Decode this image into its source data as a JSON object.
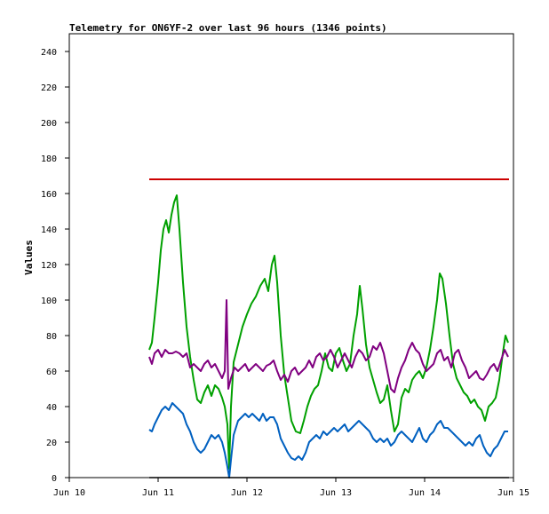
{
  "chart_data": {
    "type": "line",
    "title": "Telemetry for ON6YF-2 over last 96 hours (1346 points)",
    "xlabel": "",
    "ylabel": "Values",
    "ylim": [
      0,
      250
    ],
    "xlim": [
      10,
      15
    ],
    "yticks": [
      0,
      20,
      40,
      60,
      80,
      100,
      120,
      140,
      160,
      180,
      200,
      220,
      240
    ],
    "xticks": [
      {
        "value": 10,
        "label": "Jun 10"
      },
      {
        "value": 11,
        "label": "Jun 11"
      },
      {
        "value": 12,
        "label": "Jun 12"
      },
      {
        "value": 13,
        "label": "Jun 13"
      },
      {
        "value": 14,
        "label": "Jun 14"
      },
      {
        "value": 15,
        "label": "Jun 15"
      }
    ],
    "grid": false,
    "series": [
      {
        "color": "#cc0000",
        "points": [
          [
            10.9,
            168
          ],
          [
            14.95,
            168
          ]
        ]
      },
      {
        "color": "#00a000",
        "points": [
          [
            10.9,
            72
          ],
          [
            10.93,
            76
          ],
          [
            10.96,
            90
          ],
          [
            11.0,
            110
          ],
          [
            11.03,
            128
          ],
          [
            11.06,
            140
          ],
          [
            11.09,
            145
          ],
          [
            11.12,
            138
          ],
          [
            11.15,
            148
          ],
          [
            11.18,
            155
          ],
          [
            11.21,
            159
          ],
          [
            11.24,
            140
          ],
          [
            11.28,
            110
          ],
          [
            11.32,
            85
          ],
          [
            11.36,
            68
          ],
          [
            11.4,
            55
          ],
          [
            11.44,
            44
          ],
          [
            11.48,
            42
          ],
          [
            11.52,
            48
          ],
          [
            11.56,
            52
          ],
          [
            11.6,
            46
          ],
          [
            11.64,
            52
          ],
          [
            11.68,
            50
          ],
          [
            11.72,
            45
          ],
          [
            11.75,
            40
          ],
          [
            11.78,
            30
          ],
          [
            11.8,
            5
          ],
          [
            11.82,
            40
          ],
          [
            11.85,
            65
          ],
          [
            11.9,
            75
          ],
          [
            11.95,
            85
          ],
          [
            12.0,
            92
          ],
          [
            12.05,
            98
          ],
          [
            12.1,
            102
          ],
          [
            12.15,
            108
          ],
          [
            12.2,
            112
          ],
          [
            12.24,
            105
          ],
          [
            12.28,
            120
          ],
          [
            12.31,
            125
          ],
          [
            12.34,
            110
          ],
          [
            12.38,
            80
          ],
          [
            12.42,
            58
          ],
          [
            12.46,
            45
          ],
          [
            12.5,
            32
          ],
          [
            12.55,
            26
          ],
          [
            12.6,
            25
          ],
          [
            12.64,
            32
          ],
          [
            12.68,
            40
          ],
          [
            12.72,
            46
          ],
          [
            12.76,
            50
          ],
          [
            12.8,
            52
          ],
          [
            12.84,
            60
          ],
          [
            12.88,
            70
          ],
          [
            12.92,
            62
          ],
          [
            12.96,
            60
          ],
          [
            13.0,
            70
          ],
          [
            13.04,
            73
          ],
          [
            13.08,
            66
          ],
          [
            13.12,
            60
          ],
          [
            13.16,
            64
          ],
          [
            13.2,
            80
          ],
          [
            13.24,
            92
          ],
          [
            13.27,
            108
          ],
          [
            13.3,
            95
          ],
          [
            13.34,
            75
          ],
          [
            13.38,
            62
          ],
          [
            13.42,
            55
          ],
          [
            13.46,
            48
          ],
          [
            13.5,
            42
          ],
          [
            13.54,
            44
          ],
          [
            13.58,
            52
          ],
          [
            13.62,
            38
          ],
          [
            13.66,
            26
          ],
          [
            13.7,
            30
          ],
          [
            13.74,
            45
          ],
          [
            13.78,
            50
          ],
          [
            13.82,
            48
          ],
          [
            13.86,
            55
          ],
          [
            13.9,
            58
          ],
          [
            13.94,
            60
          ],
          [
            13.98,
            56
          ],
          [
            14.02,
            62
          ],
          [
            14.06,
            72
          ],
          [
            14.1,
            85
          ],
          [
            14.14,
            100
          ],
          [
            14.17,
            115
          ],
          [
            14.2,
            112
          ],
          [
            14.24,
            98
          ],
          [
            14.28,
            80
          ],
          [
            14.32,
            64
          ],
          [
            14.36,
            56
          ],
          [
            14.4,
            52
          ],
          [
            14.44,
            48
          ],
          [
            14.48,
            46
          ],
          [
            14.52,
            42
          ],
          [
            14.56,
            44
          ],
          [
            14.6,
            40
          ],
          [
            14.64,
            38
          ],
          [
            14.68,
            32
          ],
          [
            14.72,
            40
          ],
          [
            14.76,
            42
          ],
          [
            14.8,
            45
          ],
          [
            14.84,
            55
          ],
          [
            14.88,
            70
          ],
          [
            14.91,
            80
          ],
          [
            14.94,
            76
          ]
        ]
      },
      {
        "color": "#800080",
        "points": [
          [
            10.9,
            68
          ],
          [
            10.93,
            64
          ],
          [
            10.96,
            70
          ],
          [
            11.0,
            72
          ],
          [
            11.04,
            68
          ],
          [
            11.08,
            72
          ],
          [
            11.12,
            70
          ],
          [
            11.16,
            70
          ],
          [
            11.2,
            71
          ],
          [
            11.24,
            70
          ],
          [
            11.28,
            68
          ],
          [
            11.32,
            70
          ],
          [
            11.36,
            62
          ],
          [
            11.4,
            64
          ],
          [
            11.44,
            62
          ],
          [
            11.48,
            60
          ],
          [
            11.52,
            64
          ],
          [
            11.56,
            66
          ],
          [
            11.6,
            62
          ],
          [
            11.64,
            64
          ],
          [
            11.68,
            60
          ],
          [
            11.72,
            56
          ],
          [
            11.75,
            60
          ],
          [
            11.77,
            100
          ],
          [
            11.79,
            50
          ],
          [
            11.82,
            56
          ],
          [
            11.86,
            62
          ],
          [
            11.9,
            60
          ],
          [
            11.94,
            62
          ],
          [
            11.98,
            64
          ],
          [
            12.02,
            60
          ],
          [
            12.06,
            62
          ],
          [
            12.1,
            64
          ],
          [
            12.14,
            62
          ],
          [
            12.18,
            60
          ],
          [
            12.22,
            63
          ],
          [
            12.26,
            64
          ],
          [
            12.3,
            66
          ],
          [
            12.34,
            60
          ],
          [
            12.38,
            55
          ],
          [
            12.42,
            58
          ],
          [
            12.46,
            54
          ],
          [
            12.5,
            60
          ],
          [
            12.54,
            62
          ],
          [
            12.58,
            58
          ],
          [
            12.62,
            60
          ],
          [
            12.66,
            62
          ],
          [
            12.7,
            66
          ],
          [
            12.74,
            62
          ],
          [
            12.78,
            68
          ],
          [
            12.82,
            70
          ],
          [
            12.86,
            66
          ],
          [
            12.9,
            68
          ],
          [
            12.94,
            72
          ],
          [
            12.98,
            68
          ],
          [
            13.02,
            62
          ],
          [
            13.06,
            66
          ],
          [
            13.1,
            70
          ],
          [
            13.14,
            66
          ],
          [
            13.18,
            62
          ],
          [
            13.22,
            68
          ],
          [
            13.26,
            72
          ],
          [
            13.3,
            70
          ],
          [
            13.34,
            66
          ],
          [
            13.38,
            68
          ],
          [
            13.42,
            74
          ],
          [
            13.46,
            72
          ],
          [
            13.5,
            76
          ],
          [
            13.54,
            70
          ],
          [
            13.58,
            60
          ],
          [
            13.62,
            50
          ],
          [
            13.66,
            48
          ],
          [
            13.7,
            56
          ],
          [
            13.74,
            62
          ],
          [
            13.78,
            66
          ],
          [
            13.82,
            72
          ],
          [
            13.86,
            76
          ],
          [
            13.9,
            72
          ],
          [
            13.94,
            70
          ],
          [
            13.98,
            64
          ],
          [
            14.02,
            60
          ],
          [
            14.06,
            62
          ],
          [
            14.1,
            64
          ],
          [
            14.14,
            70
          ],
          [
            14.18,
            72
          ],
          [
            14.22,
            66
          ],
          [
            14.26,
            68
          ],
          [
            14.3,
            62
          ],
          [
            14.34,
            70
          ],
          [
            14.38,
            72
          ],
          [
            14.42,
            66
          ],
          [
            14.46,
            62
          ],
          [
            14.5,
            56
          ],
          [
            14.54,
            58
          ],
          [
            14.58,
            60
          ],
          [
            14.62,
            56
          ],
          [
            14.66,
            55
          ],
          [
            14.7,
            58
          ],
          [
            14.74,
            62
          ],
          [
            14.78,
            64
          ],
          [
            14.82,
            60
          ],
          [
            14.86,
            66
          ],
          [
            14.9,
            72
          ],
          [
            14.94,
            68
          ]
        ]
      },
      {
        "color": "#0060c0",
        "points": [
          [
            10.9,
            27
          ],
          [
            10.93,
            26
          ],
          [
            10.96,
            30
          ],
          [
            11.0,
            34
          ],
          [
            11.04,
            38
          ],
          [
            11.08,
            40
          ],
          [
            11.12,
            38
          ],
          [
            11.16,
            42
          ],
          [
            11.2,
            40
          ],
          [
            11.24,
            38
          ],
          [
            11.28,
            36
          ],
          [
            11.32,
            30
          ],
          [
            11.36,
            26
          ],
          [
            11.4,
            20
          ],
          [
            11.44,
            16
          ],
          [
            11.48,
            14
          ],
          [
            11.52,
            16
          ],
          [
            11.56,
            20
          ],
          [
            11.6,
            24
          ],
          [
            11.64,
            22
          ],
          [
            11.68,
            24
          ],
          [
            11.72,
            20
          ],
          [
            11.75,
            14
          ],
          [
            11.78,
            6
          ],
          [
            11.8,
            0
          ],
          [
            11.82,
            10
          ],
          [
            11.85,
            24
          ],
          [
            11.9,
            32
          ],
          [
            11.94,
            34
          ],
          [
            11.98,
            36
          ],
          [
            12.02,
            34
          ],
          [
            12.06,
            36
          ],
          [
            12.1,
            34
          ],
          [
            12.14,
            32
          ],
          [
            12.18,
            36
          ],
          [
            12.22,
            32
          ],
          [
            12.26,
            34
          ],
          [
            12.3,
            34
          ],
          [
            12.34,
            30
          ],
          [
            12.38,
            22
          ],
          [
            12.42,
            18
          ],
          [
            12.46,
            14
          ],
          [
            12.5,
            11
          ],
          [
            12.54,
            10
          ],
          [
            12.58,
            12
          ],
          [
            12.62,
            10
          ],
          [
            12.66,
            14
          ],
          [
            12.7,
            20
          ],
          [
            12.74,
            22
          ],
          [
            12.78,
            24
          ],
          [
            12.82,
            22
          ],
          [
            12.86,
            26
          ],
          [
            12.9,
            24
          ],
          [
            12.94,
            26
          ],
          [
            12.98,
            28
          ],
          [
            13.02,
            26
          ],
          [
            13.06,
            28
          ],
          [
            13.1,
            30
          ],
          [
            13.14,
            26
          ],
          [
            13.18,
            28
          ],
          [
            13.22,
            30
          ],
          [
            13.26,
            32
          ],
          [
            13.3,
            30
          ],
          [
            13.34,
            28
          ],
          [
            13.38,
            26
          ],
          [
            13.42,
            22
          ],
          [
            13.46,
            20
          ],
          [
            13.5,
            22
          ],
          [
            13.54,
            20
          ],
          [
            13.58,
            22
          ],
          [
            13.62,
            18
          ],
          [
            13.66,
            20
          ],
          [
            13.7,
            24
          ],
          [
            13.74,
            26
          ],
          [
            13.78,
            24
          ],
          [
            13.82,
            22
          ],
          [
            13.86,
            20
          ],
          [
            13.9,
            24
          ],
          [
            13.94,
            28
          ],
          [
            13.98,
            22
          ],
          [
            14.02,
            20
          ],
          [
            14.06,
            24
          ],
          [
            14.1,
            26
          ],
          [
            14.14,
            30
          ],
          [
            14.18,
            32
          ],
          [
            14.22,
            28
          ],
          [
            14.26,
            28
          ],
          [
            14.3,
            26
          ],
          [
            14.34,
            24
          ],
          [
            14.38,
            22
          ],
          [
            14.42,
            20
          ],
          [
            14.46,
            18
          ],
          [
            14.5,
            20
          ],
          [
            14.54,
            18
          ],
          [
            14.58,
            22
          ],
          [
            14.62,
            24
          ],
          [
            14.66,
            18
          ],
          [
            14.7,
            14
          ],
          [
            14.74,
            12
          ],
          [
            14.78,
            16
          ],
          [
            14.82,
            18
          ],
          [
            14.86,
            22
          ],
          [
            14.9,
            26
          ],
          [
            14.94,
            26
          ]
        ]
      },
      {
        "color": "#000000",
        "points": [
          [
            10.9,
            0
          ],
          [
            14.95,
            0
          ]
        ]
      }
    ]
  }
}
